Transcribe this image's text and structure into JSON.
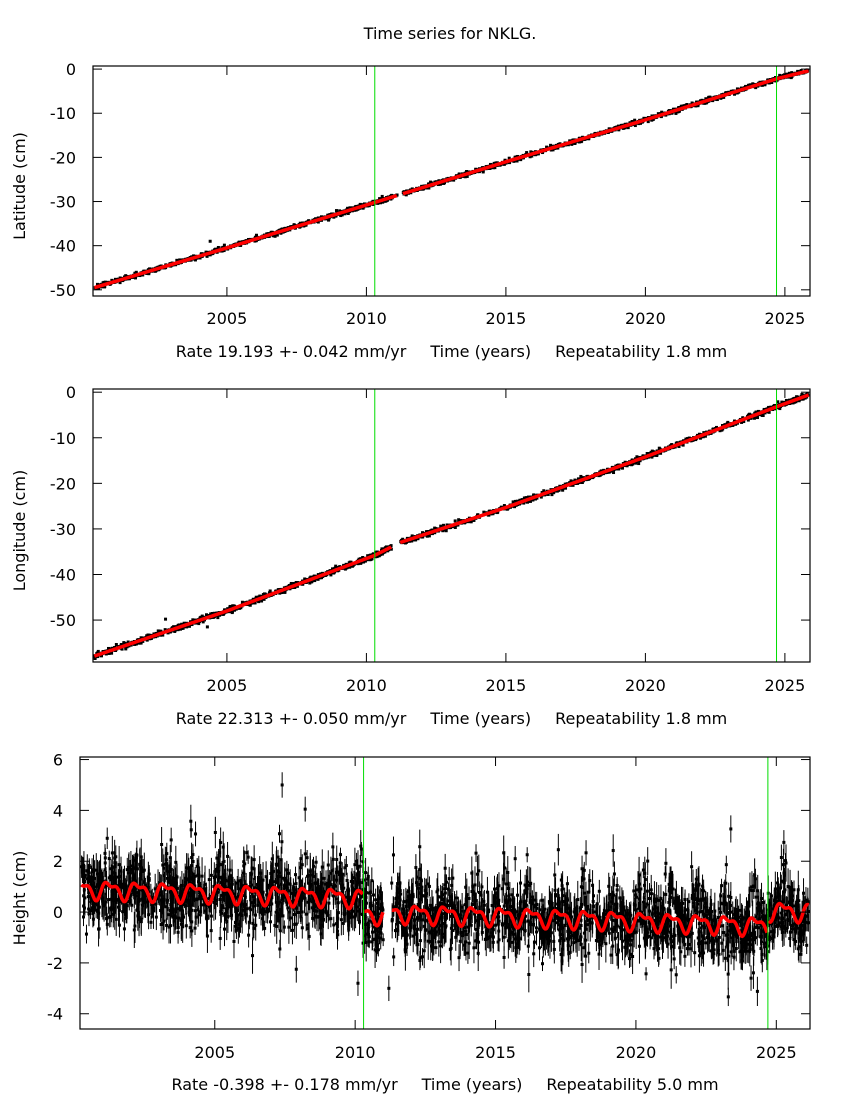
{
  "title": "Time series for NKLG.",
  "colors": {
    "observations": "#000000",
    "model": "#ff0000",
    "event_lines": "#00dd00",
    "axes": "#000000"
  },
  "chart_data": [
    {
      "type": "scatter",
      "ylabel": "Latitude (cm)",
      "xlabel": "Time (years)",
      "rate": "Rate 19.193 +- 0.042 mm/yr",
      "repeatability": "Repeatability 1.8 mm",
      "xlim": [
        2000.2,
        2025.9
      ],
      "ylim": [
        -51.4,
        0.7
      ],
      "xticks": [
        "2005",
        "2010",
        "2015",
        "2020",
        "2025"
      ],
      "yticks": [
        "0",
        "-10",
        "-20",
        "-30",
        "-40",
        "-50"
      ],
      "event_lines": [
        2010.3,
        2024.7
      ],
      "gaps": [
        [
          2011.1,
          2011.3
        ]
      ],
      "model": {
        "x": [
          2000.2,
          2005,
          2010.3,
          2015,
          2020,
          2024.7,
          2025.9
        ],
        "y": [
          -49.6,
          -40.5,
          -30.2,
          -21.0,
          -11.5,
          -2.2,
          -0.3
        ]
      },
      "scatter_sigma_cm": 0.25,
      "outliers": [
        [
          2004.4,
          -39.0
        ]
      ]
    },
    {
      "type": "scatter",
      "ylabel": "Longitude (cm)",
      "xlabel": "Time (years)",
      "rate": "Rate 22.313 +- 0.050 mm/yr",
      "repeatability": "Repeatability 1.8 mm",
      "xlim": [
        2000.2,
        2025.9
      ],
      "ylim": [
        -59.2,
        0.7
      ],
      "xticks": [
        "2005",
        "2010",
        "2015",
        "2020",
        "2025"
      ],
      "yticks": [
        "0",
        "-10",
        "-20",
        "-30",
        "-40",
        "-50"
      ],
      "event_lines": [
        2010.3,
        2024.7
      ],
      "gaps": [
        [
          2010.9,
          2011.2
        ]
      ],
      "model": {
        "x": [
          2000.2,
          2005,
          2010.3,
          2011.2,
          2015,
          2020,
          2024.7,
          2025.9
        ],
        "y": [
          -58.0,
          -48.0,
          -35.8,
          -33.0,
          -25.3,
          -14.2,
          -3.2,
          -0.5
        ]
      },
      "scatter_sigma_cm": 0.3,
      "outliers": [
        [
          2002.8,
          -49.8
        ],
        [
          2004.3,
          -51.5
        ]
      ]
    },
    {
      "type": "scatter",
      "ylabel": "Height (cm)",
      "xlabel": "Time (years)",
      "rate": "Rate -0.398 +- 0.178 mm/yr",
      "repeatability": "Repeatability 5.0 mm",
      "xlim": [
        2000.2,
        2026.2
      ],
      "ylim": [
        -4.6,
        6.1
      ],
      "xticks": [
        "2005",
        "2010",
        "2015",
        "2020",
        "2025"
      ],
      "yticks": [
        "6",
        "4",
        "2",
        "0",
        "-2",
        "-4"
      ],
      "event_lines": [
        2010.3,
        2024.7
      ],
      "gaps": [
        [
          2011.0,
          2011.3
        ]
      ],
      "model": {
        "x": [
          2000.2,
          2005,
          2010.3,
          2010.31,
          2011.0,
          2011.3,
          2015,
          2020,
          2024.7,
          2024.71,
          2026.2
        ],
        "y": [
          0.9,
          0.75,
          0.55,
          -0.1,
          -0.1,
          -0.05,
          -0.15,
          -0.35,
          -0.55,
          0.05,
          0.0
        ]
      },
      "annual_amplitude_cm": 0.3,
      "scatter_sigma_cm": 0.7,
      "outliers": [
        [
          2007.4,
          5.0
        ],
        [
          2010.1,
          -2.8
        ],
        [
          2011.2,
          -3.0
        ],
        [
          2024.1,
          -2.6
        ],
        [
          2015.7,
          2.1
        ]
      ]
    }
  ]
}
